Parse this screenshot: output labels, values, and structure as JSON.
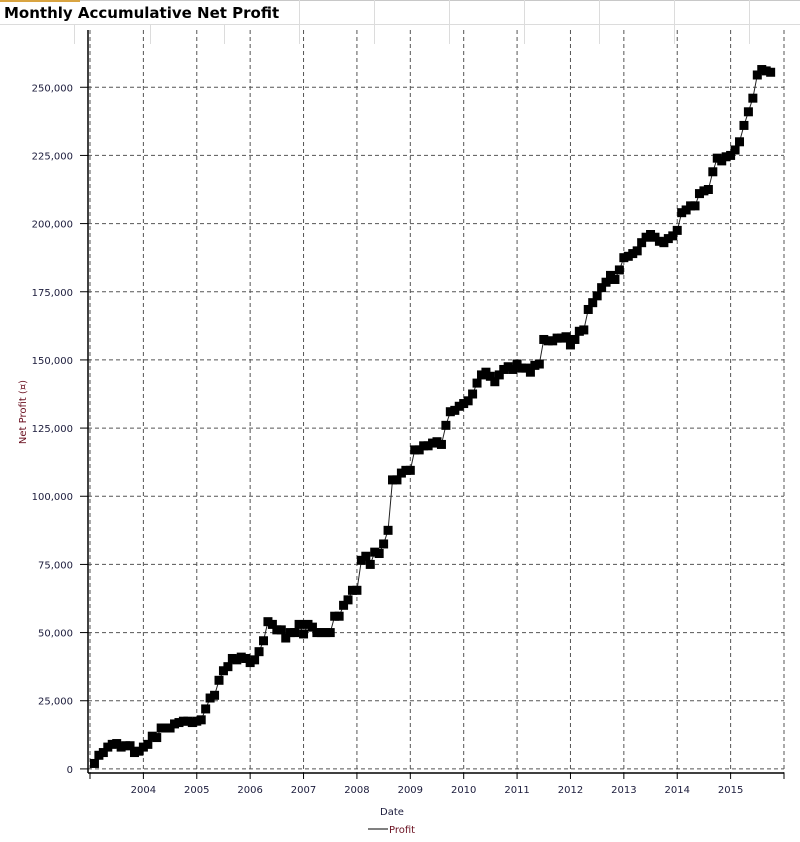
{
  "header": {
    "title": "Monthly Accumulative Net Profit"
  },
  "chart_data": {
    "type": "line",
    "title": "Monthly Accumulative Net Profit",
    "xlabel": "Date",
    "ylabel": "Net Profit (¤)",
    "legend": {
      "entries": [
        "Profit"
      ],
      "placement": "bottom"
    },
    "grid": true,
    "series_name": "Profit",
    "x_start": "2003-02",
    "x_frequency": "monthly",
    "xlim": [
      "2003-01",
      "2016-01"
    ],
    "ylim": [
      -1500,
      271000
    ],
    "x_ticks": [
      "2004",
      "2005",
      "2006",
      "2007",
      "2008",
      "2009",
      "2010",
      "2011",
      "2012",
      "2013",
      "2014",
      "2015"
    ],
    "y_ticks": [
      0,
      25000,
      50000,
      75000,
      100000,
      125000,
      150000,
      175000,
      200000,
      225000,
      250000
    ],
    "y_tick_labels": [
      "0",
      "25,000",
      "50,000",
      "75,000",
      "100,000",
      "125,000",
      "150,000",
      "175,000",
      "200,000",
      "225,000",
      "250,000"
    ],
    "values": [
      2000,
      5000,
      6000,
      8000,
      9000,
      9300,
      8000,
      8500,
      8500,
      6000,
      6500,
      8000,
      9000,
      12000,
      11500,
      15000,
      15000,
      15000,
      16500,
      17000,
      17500,
      17500,
      17000,
      17500,
      18000,
      22000,
      26000,
      27000,
      32500,
      36000,
      37500,
      40500,
      40000,
      41000,
      40500,
      39000,
      40000,
      43000,
      47000,
      54000,
      53000,
      51000,
      51000,
      48000,
      50000,
      50000,
      53000,
      49500,
      53000,
      52000,
      50000,
      50000,
      50000,
      50000,
      56000,
      56000,
      60000,
      62000,
      65500,
      65500,
      76500,
      78000,
      75000,
      79500,
      79000,
      82500,
      87500,
      106000,
      106000,
      108500,
      109500,
      109500,
      117000,
      117000,
      118500,
      118500,
      119500,
      120000,
      119000,
      126000,
      131000,
      131500,
      133000,
      134000,
      135000,
      137500,
      141500,
      144500,
      145500,
      144000,
      142000,
      144500,
      146500,
      147500,
      146500,
      148500,
      147000,
      147000,
      145500,
      148000,
      148500,
      157500,
      157000,
      157000,
      158000,
      158000,
      158500,
      155500,
      157500,
      160500,
      161000,
      168500,
      171000,
      173500,
      176500,
      178500,
      181000,
      179500,
      183000,
      187500,
      188000,
      189000,
      190000,
      193000,
      195000,
      196000,
      195000,
      193500,
      193000,
      194500,
      195500,
      197500,
      204000,
      205000,
      206500,
      206500,
      211000,
      212000,
      212500,
      219000,
      224000,
      223000,
      224500,
      225000,
      227000,
      230000,
      236000,
      241000,
      246000,
      254500,
      256500,
      256000,
      255500
    ]
  }
}
